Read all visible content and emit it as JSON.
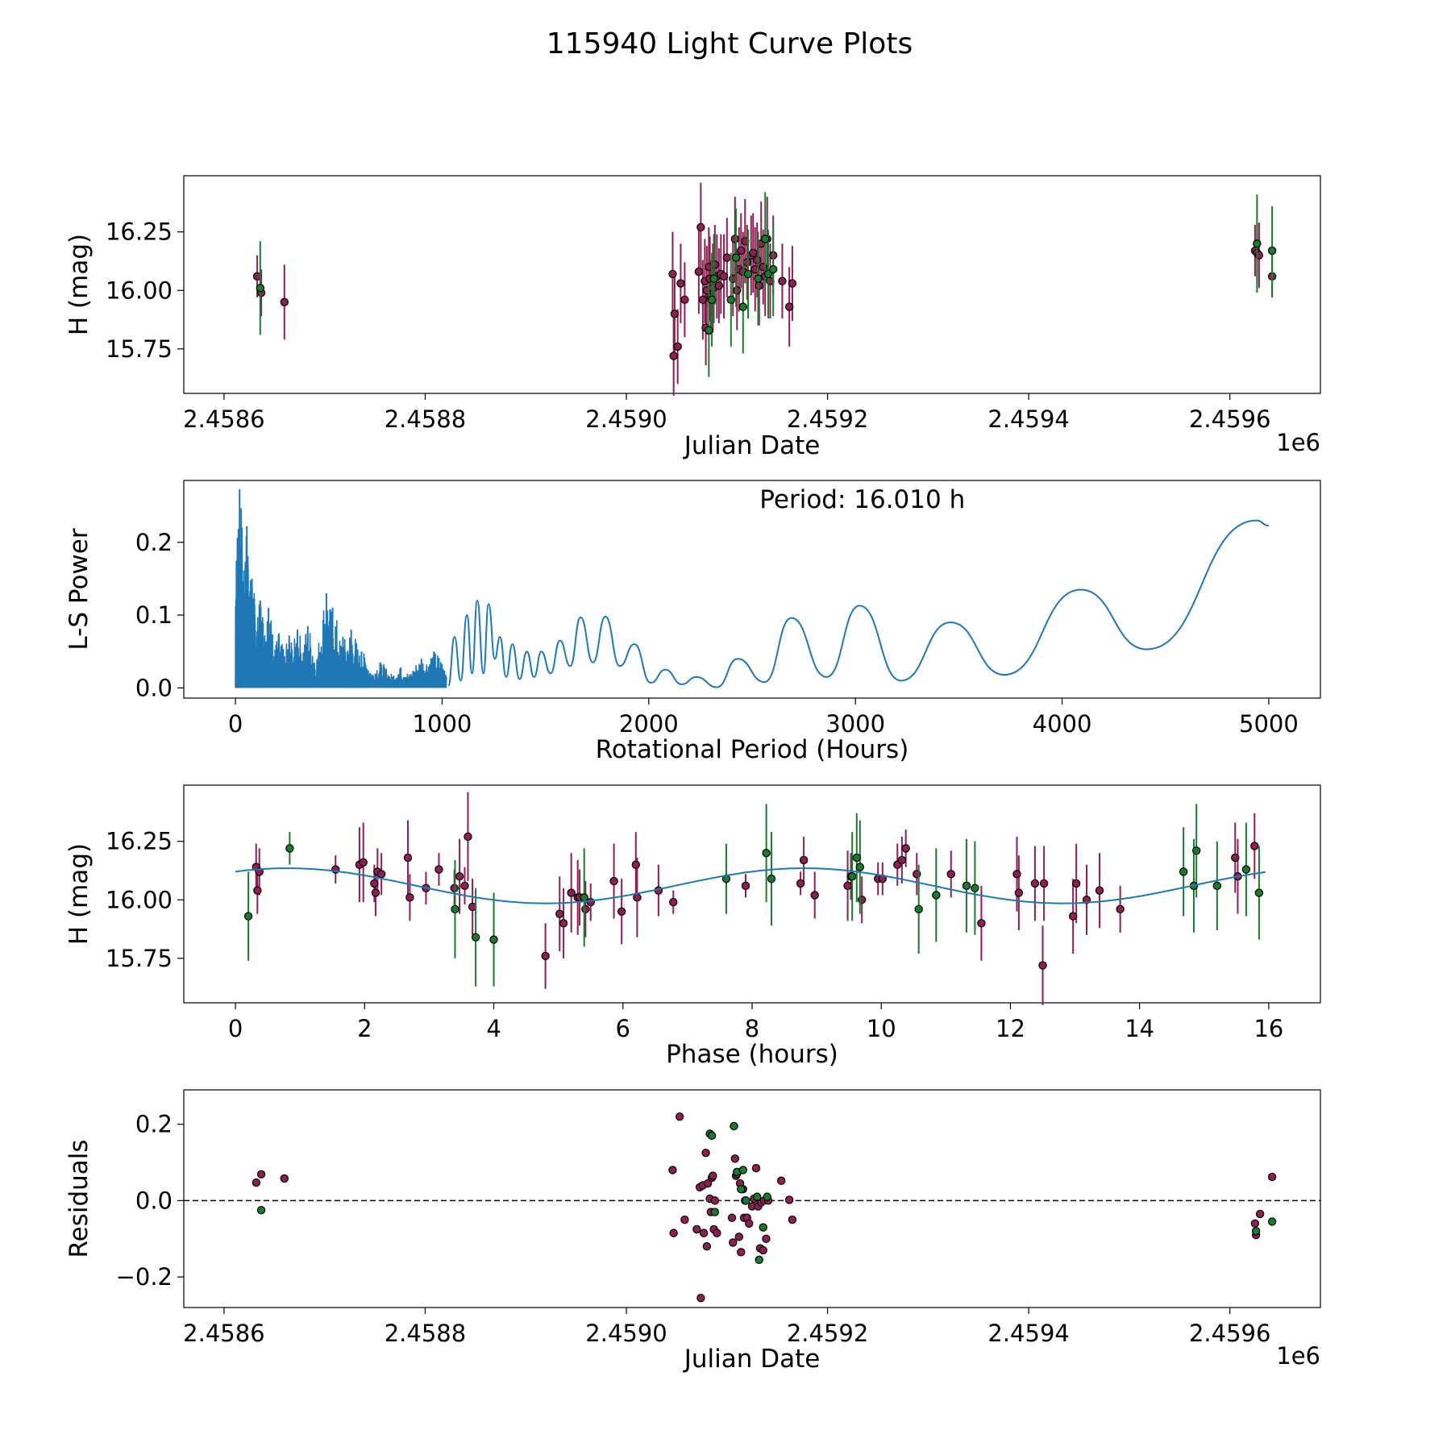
{
  "figure": {
    "title": "115940 Light Curve Plots",
    "colors": {
      "band_a": "#8c1f54",
      "band_b": "#1a7a2e",
      "curve": "#1f77b4",
      "marker_edge": "#000000"
    }
  },
  "chart_data": [
    {
      "id": "lightcurve",
      "type": "scatter",
      "title": "",
      "xlabel": "Julian Date",
      "ylabel": "H (mag)",
      "x_offset_label": "1e6",
      "xlim": [
        2.45856,
        2.45969
      ],
      "ylim": [
        15.56,
        16.49
      ],
      "xticks": [
        2.4586,
        2.4588,
        2.459,
        2.4592,
        2.4594,
        2.4596
      ],
      "xtick_labels": [
        "2.4586",
        "2.4588",
        "2.4590",
        "2.4592",
        "2.4594",
        "2.4596"
      ],
      "yticks": [
        15.75,
        16.0,
        16.25
      ],
      "ytick_labels": [
        "15.75",
        "16.00",
        "16.25"
      ],
      "series": [
        {
          "name": "band_a",
          "color_key": "band_a",
          "x": [
            2.458633,
            2.458637,
            2.45866,
            2.459046,
            2.459047,
            2.459048,
            2.459051,
            2.459054,
            2.459058,
            2.459072,
            2.459074,
            2.459076,
            2.459078,
            2.459079,
            2.45908,
            2.459082,
            2.459083,
            2.459084,
            2.459086,
            2.459088,
            2.45909,
            2.459092,
            2.459094,
            2.459097,
            2.4591,
            2.459106,
            2.459108,
            2.45911,
            2.459112,
            2.459114,
            2.459116,
            2.459118,
            2.45912,
            2.459124,
            2.459126,
            2.459128,
            2.45913,
            2.459132,
            2.459134,
            2.459136,
            2.459138,
            2.45914,
            2.459143,
            2.459146,
            2.459155,
            2.459162,
            2.459165,
            2.459625,
            2.459627,
            2.459629,
            2.459642
          ],
          "y": [
            16.06,
            15.99,
            15.95,
            16.07,
            15.72,
            15.9,
            15.76,
            16.03,
            15.96,
            16.08,
            16.27,
            15.96,
            16.04,
            15.84,
            16.0,
            16.1,
            16.05,
            15.97,
            16.01,
            16.11,
            16.06,
            16.02,
            16.07,
            16.06,
            16.14,
            16.05,
            16.22,
            16.0,
            16.09,
            16.17,
            16.08,
            16.21,
            16.12,
            16.15,
            16.16,
            16.09,
            16.13,
            16.02,
            16.2,
            16.1,
            16.06,
            16.22,
            16.04,
            16.15,
            16.04,
            15.93,
            16.03,
            16.17,
            16.16,
            16.15,
            16.06
          ],
          "err": [
            0.09,
            0.1,
            0.16,
            0.18,
            0.17,
            0.17,
            0.16,
            0.17,
            0.16,
            0.18,
            0.19,
            0.17,
            0.18,
            0.16,
            0.19,
            0.17,
            0.18,
            0.16,
            0.19,
            0.17,
            0.18,
            0.16,
            0.17,
            0.18,
            0.17,
            0.16,
            0.18,
            0.17,
            0.18,
            0.16,
            0.17,
            0.18,
            0.16,
            0.17,
            0.17,
            0.18,
            0.16,
            0.17,
            0.18,
            0.16,
            0.17,
            0.18,
            0.16,
            0.17,
            0.16,
            0.17,
            0.16,
            0.11,
            0.13,
            0.14,
            0.09
          ]
        },
        {
          "name": "band_b",
          "color_key": "band_b",
          "x": [
            2.458636,
            2.459082,
            2.459085,
            2.459087,
            2.459104,
            2.459109,
            2.459116,
            2.459121,
            2.459131,
            2.459138,
            2.459141,
            2.459146,
            2.459627,
            2.459642
          ],
          "y": [
            16.01,
            15.83,
            15.96,
            16.05,
            15.96,
            16.14,
            15.93,
            16.07,
            16.05,
            16.22,
            16.07,
            16.09,
            16.2,
            16.17
          ],
          "err": [
            0.2,
            0.2,
            0.2,
            0.19,
            0.2,
            0.21,
            0.2,
            0.19,
            0.2,
            0.2,
            0.19,
            0.2,
            0.21,
            0.19
          ]
        }
      ]
    },
    {
      "id": "periodogram",
      "type": "line",
      "title": "",
      "xlabel": "Rotational Period (Hours)",
      "ylabel": "L-S Power",
      "annotation": "Period: 16.010 h",
      "xlim": [
        -250,
        5250
      ],
      "ylim": [
        -0.014,
        0.285
      ],
      "xticks": [
        0,
        1000,
        2000,
        3000,
        4000,
        5000
      ],
      "xtick_labels": [
        "0",
        "1000",
        "2000",
        "3000",
        "4000",
        "5000"
      ],
      "yticks": [
        0.0,
        0.1,
        0.2
      ],
      "ytick_labels": [
        "0.0",
        "0.1",
        "0.2"
      ],
      "peaks": {
        "x": [
          1060,
          1120,
          1170,
          1225,
          1280,
          1340,
          1410,
          1480,
          1570,
          1670,
          1790,
          1930,
          2080,
          2230,
          2430,
          2690,
          3020,
          3460,
          4090,
          4940,
          5000
        ],
        "y": [
          0.07,
          0.1,
          0.12,
          0.115,
          0.07,
          0.06,
          0.05,
          0.05,
          0.065,
          0.097,
          0.098,
          0.06,
          0.025,
          0.015,
          0.04,
          0.096,
          0.113,
          0.09,
          0.135,
          0.23,
          0.223
        ]
      },
      "troughs": {
        "x": [
          1030,
          1090,
          1145,
          1200,
          1255,
          1310,
          1375,
          1445,
          1525,
          1620,
          1730,
          1860,
          2010,
          2160,
          2330,
          2560,
          2860,
          3220,
          3720,
          4410
        ],
        "y": [
          0.003,
          0.01,
          0.02,
          0.02,
          0.04,
          0.015,
          0.012,
          0.015,
          0.02,
          0.03,
          0.035,
          0.03,
          0.007,
          0.005,
          0.001,
          0.008,
          0.015,
          0.01,
          0.018,
          0.053
        ]
      },
      "dense_region": {
        "x_start": 0,
        "x_end": 1000,
        "spikes": [
          [
            20,
            0.273
          ],
          [
            55,
            0.222
          ],
          [
            10,
            0.19
          ],
          [
            30,
            0.18
          ],
          [
            5,
            0.175
          ],
          [
            80,
            0.15
          ],
          [
            120,
            0.12
          ],
          [
            160,
            0.11
          ],
          [
            210,
            0.075
          ],
          [
            260,
            0.072
          ],
          [
            300,
            0.08
          ],
          [
            350,
            0.085
          ],
          [
            440,
            0.13
          ],
          [
            470,
            0.11
          ],
          [
            520,
            0.07
          ],
          [
            560,
            0.08
          ],
          [
            610,
            0.05
          ],
          [
            700,
            0.035
          ],
          [
            800,
            0.028
          ],
          [
            900,
            0.04
          ],
          [
            960,
            0.05
          ]
        ]
      }
    },
    {
      "id": "phase",
      "type": "scatter",
      "title": "",
      "xlabel": "Phase (hours)",
      "ylabel": "H (mag)",
      "xlim": [
        -0.8,
        16.8
      ],
      "ylim": [
        15.56,
        16.49
      ],
      "xticks": [
        0,
        2,
        4,
        6,
        8,
        10,
        12,
        14,
        16
      ],
      "xtick_labels": [
        "0",
        "2",
        "4",
        "6",
        "8",
        "10",
        "12",
        "14",
        "16"
      ],
      "yticks": [
        15.75,
        16.0,
        16.25
      ],
      "ytick_labels": [
        "15.75",
        "16.00",
        "16.25"
      ],
      "model": {
        "mean": 16.06,
        "amplitude": 0.075,
        "period": 8.005,
        "phase_peak": 0.8
      },
      "series": [
        {
          "name": "band_a",
          "color_key": "band_a",
          "x": [
            0.32,
            0.34,
            0.37,
            1.55,
            1.92,
            1.98,
            2.15,
            2.17,
            2.2,
            2.26,
            2.67,
            2.7,
            2.95,
            3.15,
            3.39,
            3.47,
            3.55,
            3.6,
            3.67,
            4.8,
            5.02,
            5.08,
            5.2,
            5.3,
            5.33,
            5.42,
            5.5,
            5.86,
            5.98,
            6.2,
            6.22,
            6.55,
            6.78,
            7.9,
            8.75,
            8.8,
            8.97,
            9.48,
            9.53,
            9.7,
            9.95,
            10.02,
            10.25,
            10.32,
            10.38,
            10.55,
            11.08,
            11.55,
            12.1,
            12.13,
            12.38,
            12.5,
            12.52,
            12.97,
            13.02,
            13.18,
            13.38,
            13.7,
            15.48,
            15.52,
            15.78
          ],
          "y": [
            16.14,
            16.04,
            16.12,
            16.13,
            16.15,
            16.16,
            16.07,
            16.03,
            16.12,
            16.11,
            16.18,
            16.01,
            16.05,
            16.13,
            16.05,
            16.1,
            16.06,
            16.27,
            15.97,
            15.76,
            15.94,
            15.9,
            16.03,
            16.01,
            16.01,
            15.96,
            15.99,
            16.08,
            15.95,
            16.15,
            16.01,
            16.04,
            15.99,
            16.06,
            16.07,
            16.17,
            16.02,
            16.06,
            16.1,
            16.0,
            16.09,
            16.09,
            16.15,
            16.17,
            16.22,
            16.11,
            16.11,
            15.9,
            16.11,
            16.03,
            16.07,
            15.72,
            16.07,
            15.93,
            16.07,
            16.0,
            16.04,
            15.96,
            16.18,
            16.1,
            16.23
          ],
          "err": [
            0.1,
            0.1,
            0.1,
            0.06,
            0.16,
            0.17,
            0.08,
            0.1,
            0.1,
            0.09,
            0.16,
            0.1,
            0.07,
            0.07,
            0.08,
            0.16,
            0.08,
            0.19,
            0.12,
            0.14,
            0.16,
            0.15,
            0.17,
            0.16,
            0.12,
            0.12,
            0.08,
            0.16,
            0.14,
            0.14,
            0.17,
            0.11,
            0.05,
            0.05,
            0.05,
            0.1,
            0.1,
            0.15,
            0.1,
            0.1,
            0.07,
            0.07,
            0.09,
            0.1,
            0.08,
            0.09,
            0.1,
            0.16,
            0.16,
            0.16,
            0.16,
            0.17,
            0.16,
            0.16,
            0.17,
            0.15,
            0.16,
            0.1,
            0.15,
            0.16,
            0.14
          ]
        },
        {
          "name": "band_b",
          "color_key": "band_b",
          "x": [
            0.2,
            0.84,
            3.4,
            3.72,
            4.0,
            5.4,
            7.6,
            8.22,
            8.3,
            9.55,
            9.62,
            9.67,
            10.58,
            10.85,
            11.32,
            11.45,
            14.68,
            14.84,
            14.88,
            15.2,
            15.65,
            15.85
          ],
          "y": [
            15.93,
            16.22,
            15.96,
            15.84,
            15.83,
            16.01,
            16.09,
            16.2,
            16.09,
            16.1,
            16.18,
            16.14,
            15.96,
            16.02,
            16.06,
            16.05,
            16.12,
            16.06,
            16.21,
            16.06,
            16.13,
            16.03
          ],
          "err": [
            0.19,
            0.07,
            0.21,
            0.21,
            0.2,
            0.21,
            0.15,
            0.21,
            0.2,
            0.19,
            0.19,
            0.2,
            0.19,
            0.2,
            0.2,
            0.2,
            0.19,
            0.2,
            0.2,
            0.19,
            0.2,
            0.2
          ]
        }
      ]
    },
    {
      "id": "residuals",
      "type": "scatter",
      "title": "",
      "xlabel": "Julian Date",
      "ylabel": "Residuals",
      "x_offset_label": "1e6",
      "xlim": [
        2.45856,
        2.45969
      ],
      "ylim": [
        -0.28,
        0.29
      ],
      "xticks": [
        2.4586,
        2.4588,
        2.459,
        2.4592,
        2.4594,
        2.4596
      ],
      "xtick_labels": [
        "2.4586",
        "2.4588",
        "2.4590",
        "2.4592",
        "2.4594",
        "2.4596"
      ],
      "yticks": [
        -0.2,
        0.0,
        0.2
      ],
      "ytick_labels": [
        "−0.2",
        "0.0",
        "0.2"
      ],
      "reference_line": 0.0,
      "series": [
        {
          "name": "band_a",
          "color_key": "band_a",
          "x": [
            2.458632,
            2.458637,
            2.45866,
            2.459046,
            2.459047,
            2.459053,
            2.459058,
            2.45907,
            2.459073,
            2.459074,
            2.459076,
            2.459077,
            2.459079,
            2.45908,
            2.459081,
            2.459083,
            2.459084,
            2.459085,
            2.459086,
            2.459087,
            2.459088,
            2.45909,
            2.459105,
            2.459106,
            2.459108,
            2.459109,
            2.45911,
            2.459112,
            2.459113,
            2.459114,
            2.459116,
            2.459117,
            2.459118,
            2.45912,
            2.459122,
            2.459125,
            2.459127,
            2.459129,
            2.459131,
            2.459133,
            2.459134,
            2.459136,
            2.459137,
            2.459139,
            2.459141,
            2.459154,
            2.459162,
            2.459165,
            2.459625,
            2.459626,
            2.45963,
            2.459642
          ],
          "y": [
            0.047,
            0.069,
            0.058,
            0.08,
            -0.085,
            0.22,
            -0.05,
            -0.075,
            0.035,
            -0.255,
            0.04,
            -0.085,
            0.125,
            -0.12,
            0.045,
            0.005,
            -0.03,
            0.06,
            0.065,
            -0.075,
            0.0,
            -0.085,
            -0.045,
            -0.11,
            0.11,
            0.065,
            0.07,
            -0.095,
            0.045,
            -0.135,
            0.03,
            -0.045,
            0.0,
            -0.045,
            -0.06,
            -0.015,
            0.005,
            0.085,
            -0.015,
            -0.125,
            -0.005,
            -0.13,
            0.0,
            -0.1,
            0.0,
            0.052,
            0.002,
            -0.05,
            -0.06,
            -0.09,
            -0.035,
            0.062
          ],
          "err": []
        },
        {
          "name": "band_b",
          "color_key": "band_b",
          "x": [
            2.458637,
            2.459083,
            2.459085,
            2.459088,
            2.459107,
            2.45911,
            2.459114,
            2.459116,
            2.459119,
            2.45913,
            2.459132,
            2.459136,
            2.45914,
            2.459626,
            2.459642
          ],
          "y": [
            -0.025,
            0.175,
            0.17,
            -0.03,
            0.195,
            0.075,
            0.03,
            0.08,
            0.0,
            0.01,
            -0.155,
            -0.07,
            0.01,
            -0.08,
            -0.055
          ],
          "err": []
        }
      ]
    }
  ]
}
